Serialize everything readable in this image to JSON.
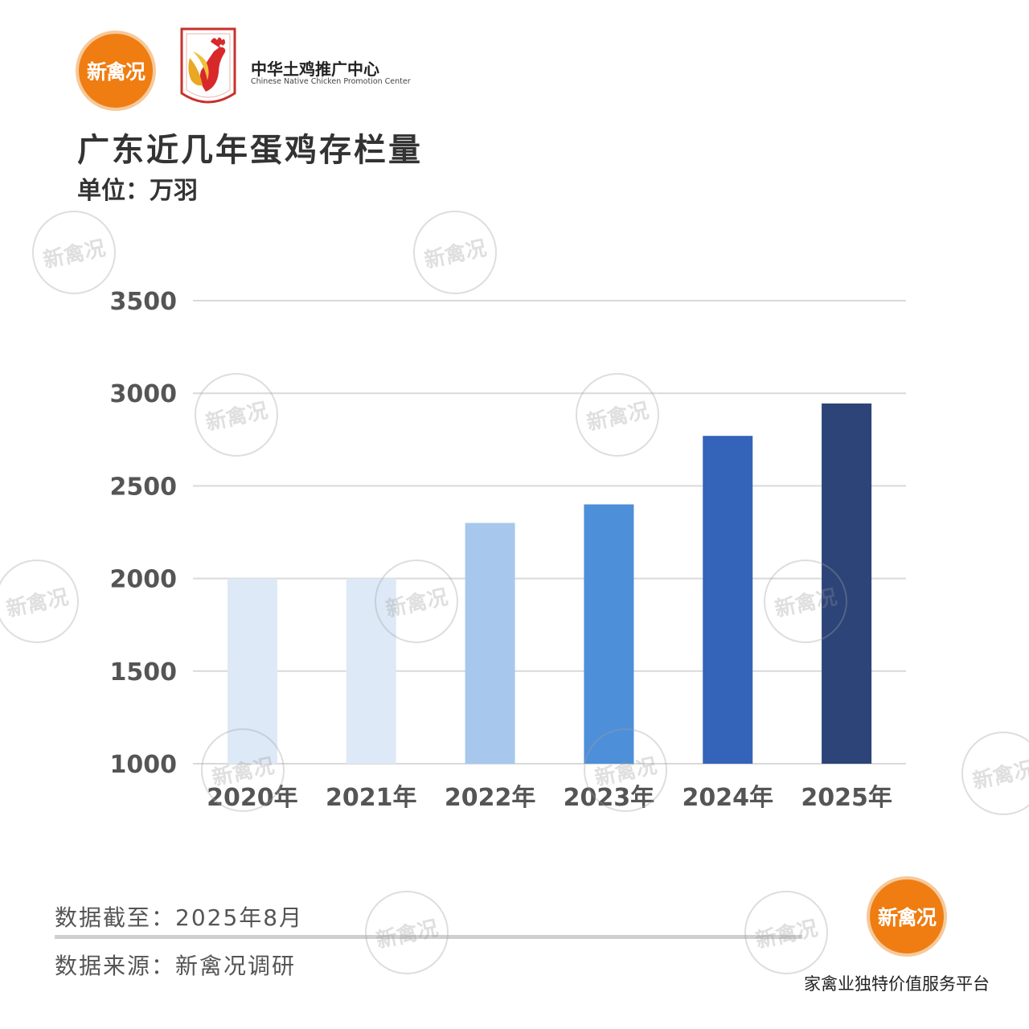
{
  "header": {
    "brand_logo_text": "新禽况",
    "center_name_cn": "中华土鸡推广中心",
    "center_name_en": "Chinese Native Chicken Promotion Center",
    "title": "广东近几年蛋鸡存栏量",
    "unit": "单位：万羽"
  },
  "watermark_text": "新禽况",
  "colors": {
    "bar_2020": "#dde9f6",
    "bar_2021": "#dde9f6",
    "bar_2022": "#a7c8ec",
    "bar_2023": "#4d8fd8",
    "bar_2024": "#3464b9",
    "bar_2025": "#2c4478",
    "grid": "#d9d9d9",
    "brand_orange": "#ef7d12"
  },
  "chart_data": {
    "type": "bar",
    "title": "广东近几年蛋鸡存栏量",
    "ylabel": "单位：万羽",
    "xlabel": "",
    "categories": [
      "2020年",
      "2021年",
      "2022年",
      "2023年",
      "2024年",
      "2025年"
    ],
    "values": [
      2000,
      2000,
      2300,
      2400,
      2770,
      2945
    ],
    "ylim": [
      1000,
      3500
    ],
    "yticks": [
      "1000",
      "1500",
      "2000",
      "2500",
      "3000",
      "3500"
    ],
    "grid": true,
    "legend": "none"
  },
  "footer": {
    "date": "数据截至：2025年8月",
    "source": "数据来源：新禽况调研",
    "slogan": "家禽业独特价值服务平台"
  }
}
